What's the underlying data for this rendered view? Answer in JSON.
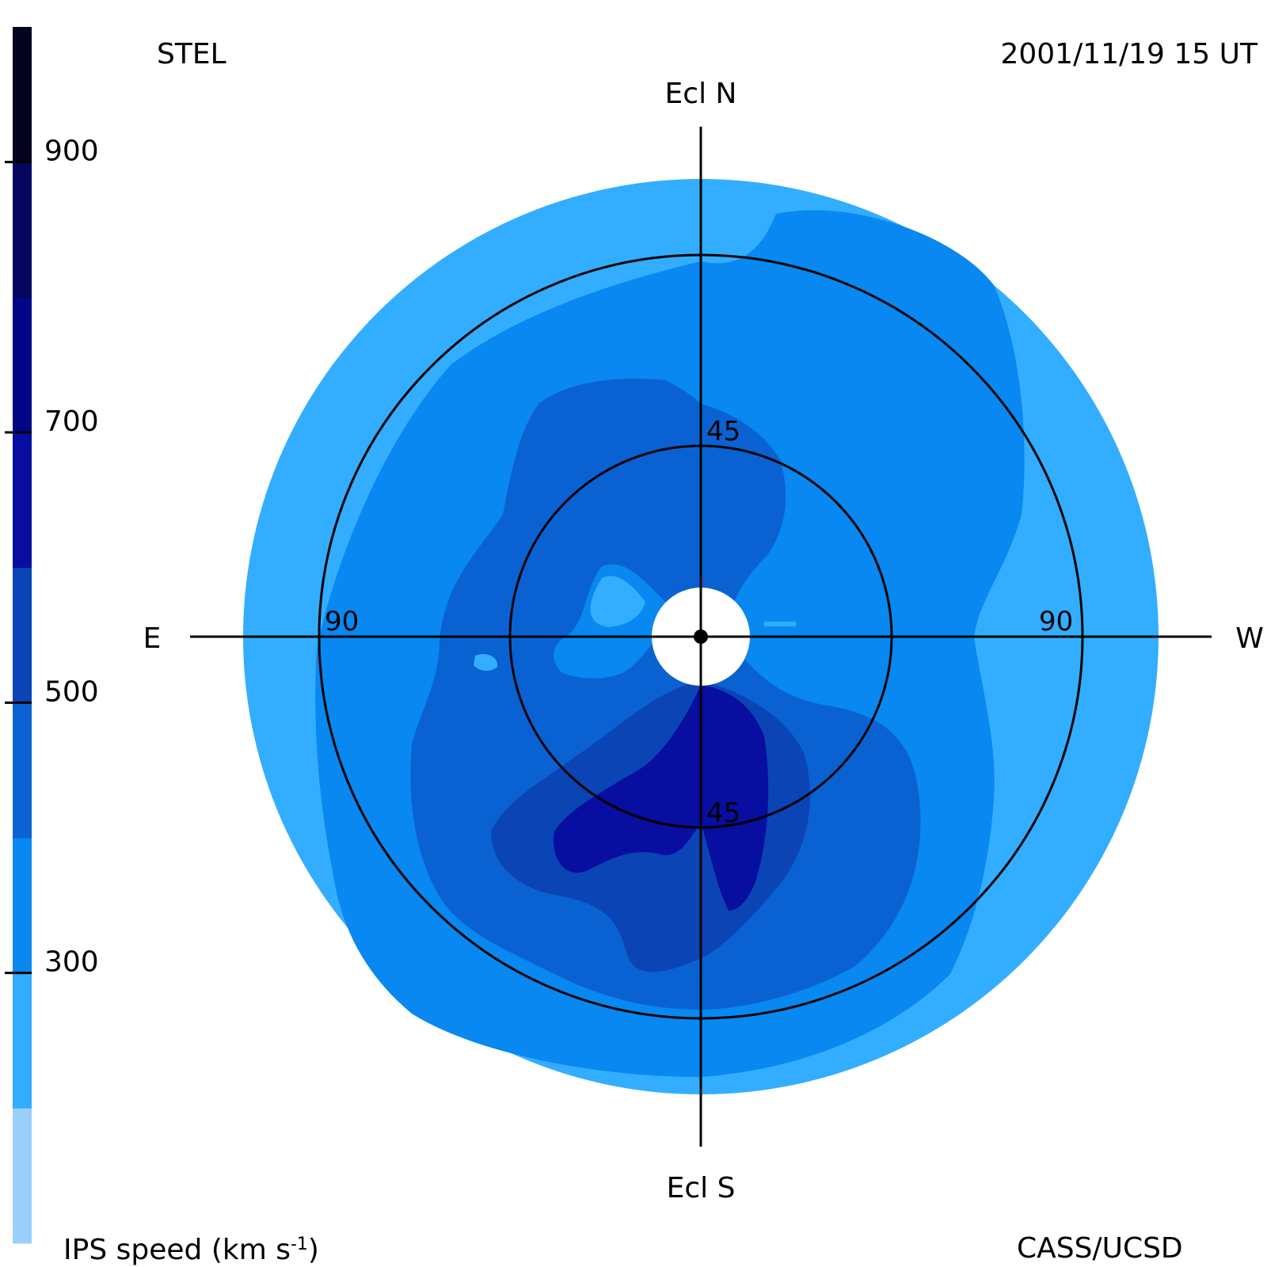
{
  "header": {
    "observatory": "STEL",
    "timestamp": "2001/11/19 15 UT"
  },
  "footer": {
    "credit": "CASS/UCSD"
  },
  "chart_data": {
    "type": "heatmap",
    "projection": "polar sky map (fisheye) centred on the Sun",
    "directions": {
      "north": "Ecl N",
      "south": "Ecl S",
      "east": "E",
      "west": "W"
    },
    "elongation_rings": [
      {
        "value": 45,
        "labels": [
          "45",
          "45"
        ]
      },
      {
        "value": 90,
        "labels": [
          "90",
          "90"
        ]
      }
    ],
    "max_elongation": 120,
    "colorbar": {
      "label": "IPS speed (km s",
      "label_superscript": "-1",
      "label_close": ")",
      "range": [
        100,
        1000
      ],
      "ticks": [
        300,
        500,
        700,
        900
      ],
      "bins": [
        {
          "from": 100,
          "to": 200,
          "color": "#99d0fa"
        },
        {
          "from": 200,
          "to": 300,
          "color": "#33adff"
        },
        {
          "from": 300,
          "to": 400,
          "color": "#0888f0"
        },
        {
          "from": 400,
          "to": 500,
          "color": "#0a62d2"
        },
        {
          "from": 500,
          "to": 600,
          "color": "#0a44b5"
        },
        {
          "from": 600,
          "to": 700,
          "color": "#070ea0"
        },
        {
          "from": 700,
          "to": 800,
          "color": "#040688"
        },
        {
          "from": 800,
          "to": 900,
          "color": "#050660"
        },
        {
          "from": 900,
          "to": 1000,
          "color": "#030420"
        }
      ]
    },
    "speed_regions_note": "speed bins drawn as nested regions (data units: elongation degrees, position angle)",
    "regions": [
      {
        "speed_bin": "200-300",
        "color": "#33adff",
        "shape": "full disk to 120 deg"
      },
      {
        "speed_bin": "300-400",
        "color": "#0888f0",
        "shape": "inner field"
      },
      {
        "speed_bin": "400-500",
        "color": "#0a62d2",
        "shape": "eastern / southern lobe"
      },
      {
        "speed_bin": "500-600",
        "color": "#0a44b5",
        "shape": "southern lobe"
      },
      {
        "speed_bin": "600-700",
        "color": "#070ea0",
        "shape": "south / south-east tongues"
      }
    ]
  }
}
